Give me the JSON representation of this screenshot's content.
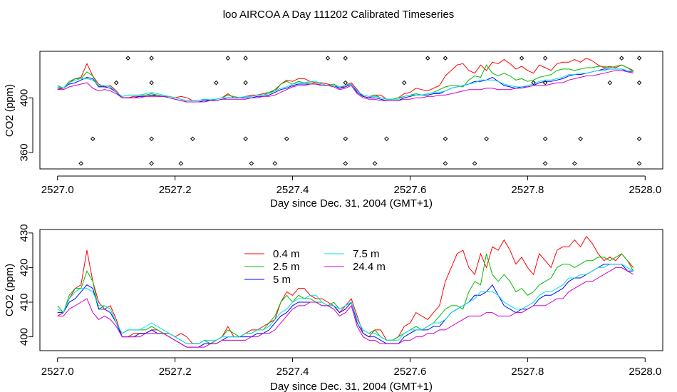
{
  "title": "loo AIRCOA A  Day 111202  Calibrated Timeseries",
  "colors": {
    "0.4 m": "#ff0000",
    "2.5 m": "#00bb00",
    "5 m": "#0000ff",
    "7.5 m": "#00e0e0",
    "24.4 m": "#cc00cc",
    "markers": "#000000"
  },
  "chart_data": [
    {
      "type": "line",
      "title": "",
      "xlabel": "Day since Dec. 31, 2004 (GMT+1)",
      "ylabel": "CO2 (ppm)",
      "xlim": [
        2526.97,
        2528.03
      ],
      "ylim": [
        348,
        434
      ],
      "x_ticks": [
        2527.0,
        2527.2,
        2527.4,
        2527.6,
        2527.8,
        2528.0
      ],
      "x_tick_labels": [
        "2527.0",
        "2527.2",
        "2527.4",
        "2527.6",
        "2527.8",
        "2528.0"
      ],
      "y_ticks": [
        360,
        400
      ],
      "y_tick_labels": [
        "360",
        "400"
      ],
      "legend": "none",
      "marker_rows": [
        {
          "y": 429,
          "x": [
            2527.12,
            2527.16,
            2527.29,
            2527.32,
            2527.46,
            2527.49,
            2527.63,
            2527.66,
            2527.79,
            2527.83,
            2527.96,
            2527.99
          ]
        },
        {
          "y": 411,
          "x": [
            2527.1,
            2527.16,
            2527.27,
            2527.32,
            2527.49,
            2527.59,
            2527.81,
            2527.83,
            2527.94,
            2527.99
          ]
        },
        {
          "y": 370,
          "x": [
            2527.06,
            2527.16,
            2527.23,
            2527.32,
            2527.39,
            2527.49,
            2527.56,
            2527.66,
            2527.73,
            2527.83,
            2527.89,
            2527.99
          ]
        },
        {
          "y": 352,
          "x": [
            2527.04,
            2527.16,
            2527.21,
            2527.33,
            2527.37,
            2527.49,
            2527.54,
            2527.66,
            2527.71,
            2527.83,
            2527.88,
            2527.99
          ]
        }
      ],
      "series_ref": "shared"
    },
    {
      "type": "line",
      "title": "",
      "xlabel": "Day since Dec. 31, 2004 (GMT+1)",
      "ylabel": "CO2 (ppm)",
      "xlim": [
        2526.97,
        2528.03
      ],
      "ylim": [
        396,
        431
      ],
      "x_ticks": [
        2527.0,
        2527.2,
        2527.4,
        2527.6,
        2527.8,
        2528.0
      ],
      "x_tick_labels": [
        "2527.0",
        "2527.2",
        "2527.4",
        "2527.6",
        "2527.8",
        "2528.0"
      ],
      "y_ticks": [
        400,
        410,
        420,
        430
      ],
      "y_tick_labels": [
        "400",
        "410",
        "420",
        "430"
      ],
      "legend": "top-center",
      "legend_entries": [
        "0.4 m",
        "2.5 m",
        "5 m",
        "7.5 m",
        "24.4 m"
      ],
      "series_ref": "shared"
    }
  ],
  "shared_series": {
    "x": [
      2527.0,
      2527.01,
      2527.02,
      2527.03,
      2527.04,
      2527.05,
      2527.06,
      2527.07,
      2527.08,
      2527.09,
      2527.1,
      2527.11,
      2527.12,
      2527.13,
      2527.14,
      2527.15,
      2527.16,
      2527.17,
      2527.18,
      2527.19,
      2527.2,
      2527.21,
      2527.22,
      2527.23,
      2527.24,
      2527.25,
      2527.26,
      2527.27,
      2527.28,
      2527.29,
      2527.3,
      2527.31,
      2527.32,
      2527.33,
      2527.34,
      2527.35,
      2527.36,
      2527.37,
      2527.38,
      2527.39,
      2527.4,
      2527.41,
      2527.42,
      2527.43,
      2527.44,
      2527.45,
      2527.46,
      2527.47,
      2527.48,
      2527.49,
      2527.5,
      2527.51,
      2527.52,
      2527.53,
      2527.54,
      2527.55,
      2527.56,
      2527.57,
      2527.58,
      2527.59,
      2527.6,
      2527.61,
      2527.62,
      2527.63,
      2527.64,
      2527.65,
      2527.66,
      2527.67,
      2527.68,
      2527.69,
      2527.7,
      2527.71,
      2527.72,
      2527.73,
      2527.74,
      2527.75,
      2527.76,
      2527.77,
      2527.78,
      2527.79,
      2527.8,
      2527.81,
      2527.82,
      2527.83,
      2527.84,
      2527.85,
      2527.86,
      2527.87,
      2527.88,
      2527.89,
      2527.9,
      2527.91,
      2527.92,
      2527.93,
      2527.94,
      2527.95,
      2527.96,
      2527.97,
      2527.98
    ],
    "series": [
      {
        "name": "0.4 m",
        "values": [
          406,
          407,
          411,
          414,
          415,
          425,
          416,
          410,
          408,
          409,
          405,
          400,
          400,
          401,
          401,
          401,
          402,
          402,
          401,
          401,
          400,
          401,
          400,
          398,
          398,
          399,
          398,
          399,
          400,
          403,
          400,
          400,
          401,
          402,
          402,
          403,
          404,
          405,
          410,
          413,
          412,
          414,
          414,
          412,
          411,
          411,
          410,
          409,
          407,
          409,
          411,
          406,
          401,
          400,
          402,
          402,
          399,
          399,
          400,
          403,
          404,
          407,
          406,
          405,
          407,
          409,
          416,
          420,
          424,
          425,
          420,
          418,
          424,
          420,
          426,
          425,
          428,
          425,
          421,
          423,
          420,
          418,
          424,
          422,
          420,
          425,
          426,
          426,
          428,
          426,
          429,
          427,
          424,
          422,
          423,
          422,
          424,
          422,
          420
        ]
      },
      {
        "name": "2.5 m",
        "values": [
          409,
          407,
          412,
          414,
          414,
          419,
          416,
          408,
          409,
          408,
          404,
          401,
          402,
          402,
          402,
          402,
          403,
          402,
          401,
          401,
          400,
          399,
          398,
          398,
          398,
          399,
          398,
          399,
          400,
          402,
          401,
          400,
          401,
          401,
          402,
          402,
          404,
          406,
          410,
          412,
          410,
          412,
          411,
          411,
          410,
          410,
          409,
          410,
          408,
          409,
          410,
          405,
          402,
          401,
          402,
          400,
          399,
          399,
          400,
          401,
          402,
          403,
          402,
          403,
          404,
          406,
          408,
          409,
          409,
          408,
          413,
          416,
          415,
          424,
          418,
          416,
          418,
          416,
          413,
          414,
          412,
          413,
          415,
          416,
          417,
          420,
          421,
          421,
          420,
          421,
          422,
          422,
          423,
          423,
          422,
          423,
          424,
          422,
          419
        ]
      },
      {
        "name": "5 m",
        "values": [
          407,
          407,
          410,
          411,
          413,
          415,
          414,
          408,
          408,
          407,
          404,
          400,
          400,
          400,
          401,
          401,
          402,
          401,
          401,
          400,
          399,
          398,
          397,
          397,
          397,
          398,
          398,
          398,
          399,
          400,
          400,
          400,
          400,
          400,
          401,
          401,
          402,
          404,
          406,
          407,
          409,
          410,
          410,
          410,
          410,
          409,
          409,
          409,
          407,
          408,
          410,
          404,
          401,
          400,
          400,
          399,
          398,
          398,
          398,
          400,
          401,
          402,
          402,
          402,
          403,
          403,
          405,
          407,
          408,
          409,
          410,
          412,
          412,
          413,
          415,
          412,
          409,
          408,
          407,
          408,
          408,
          409,
          411,
          412,
          412,
          413,
          414,
          416,
          417,
          417,
          418,
          419,
          420,
          421,
          421,
          421,
          421,
          419,
          419
        ]
      },
      {
        "name": "7.5 m",
        "values": [
          408,
          407,
          411,
          413,
          414,
          414,
          413,
          409,
          409,
          408,
          404,
          401,
          402,
          402,
          402,
          403,
          404,
          403,
          402,
          401,
          400,
          399,
          398,
          398,
          398,
          399,
          399,
          399,
          400,
          400,
          400,
          400,
          401,
          401,
          402,
          402,
          403,
          405,
          407,
          408,
          410,
          411,
          411,
          412,
          412,
          410,
          409,
          409,
          408,
          409,
          410,
          405,
          402,
          401,
          401,
          400,
          399,
          399,
          399,
          401,
          402,
          402,
          402,
          403,
          404,
          404,
          405,
          407,
          408,
          409,
          410,
          411,
          413,
          413,
          413,
          412,
          410,
          409,
          408,
          408,
          409,
          410,
          412,
          413,
          413,
          414,
          415,
          417,
          417,
          418,
          418,
          419,
          420,
          420,
          421,
          421,
          421,
          420,
          419
        ]
      },
      {
        "name": "24.4 m",
        "values": [
          406,
          406,
          408,
          409,
          410,
          411,
          407,
          405,
          406,
          405,
          403,
          400,
          400,
          400,
          400,
          401,
          401,
          401,
          401,
          400,
          399,
          398,
          397,
          397,
          397,
          397,
          398,
          398,
          399,
          399,
          399,
          399,
          399,
          400,
          400,
          401,
          401,
          402,
          404,
          406,
          408,
          409,
          409,
          410,
          410,
          409,
          409,
          408,
          406,
          407,
          409,
          403,
          400,
          399,
          399,
          398,
          398,
          398,
          398,
          399,
          399,
          400,
          400,
          401,
          401,
          402,
          402,
          403,
          404,
          405,
          406,
          406,
          406,
          407,
          407,
          406,
          406,
          406,
          407,
          407,
          408,
          409,
          409,
          409,
          410,
          411,
          411,
          413,
          414,
          415,
          416,
          416,
          417,
          418,
          419,
          420,
          420,
          419,
          418
        ]
      }
    ]
  }
}
